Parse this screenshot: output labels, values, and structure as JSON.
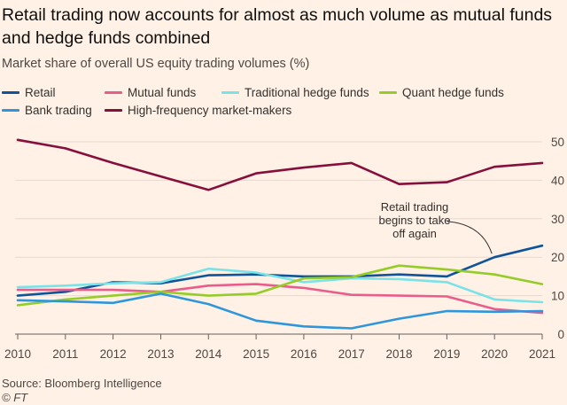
{
  "title": "Retail trading now accounts for almost as much volume as mutual funds and hedge funds combined",
  "subtitle": "Market share of overall US equity trading volumes (%)",
  "source": "Source: Bloomberg Intelligence",
  "credit": "© FT",
  "chart_data": {
    "type": "line",
    "x": [
      "2010",
      "2011",
      "2012",
      "2013",
      "2014",
      "2015",
      "2016",
      "2017",
      "2018",
      "2019",
      "2020",
      "2021"
    ],
    "ylim": [
      0,
      50
    ],
    "yticks": [
      "0",
      "10",
      "20",
      "30",
      "40",
      "50"
    ],
    "grid": true,
    "legend_position": "top-left",
    "annotation": {
      "lines": [
        "Retail trading",
        "begins to take",
        "off again"
      ],
      "points_to": {
        "x": "2020",
        "y": 20
      }
    },
    "series": [
      {
        "name": "Retail",
        "color": "#0f5499",
        "values": [
          10,
          11,
          13.5,
          13.2,
          15.3,
          15.5,
          15,
          15,
          15.5,
          15,
          20,
          23
        ]
      },
      {
        "name": "Mutual funds",
        "color": "#e95d8c",
        "values": [
          11.5,
          11.5,
          11.5,
          11,
          12.6,
          13,
          12,
          10.2,
          10,
          9.8,
          6.5,
          5.5
        ]
      },
      {
        "name": "Traditional hedge funds",
        "color": "#7ae3e8",
        "values": [
          12.2,
          12.6,
          13.2,
          13.5,
          17,
          16,
          13.5,
          14.5,
          14.3,
          13.5,
          9,
          8.3
        ]
      },
      {
        "name": "Quant hedge funds",
        "color": "#96cc28",
        "values": [
          7.5,
          9,
          10,
          11,
          10,
          10.5,
          14.5,
          14.8,
          17.8,
          16.8,
          15.5,
          13
        ]
      },
      {
        "name": "Bank trading",
        "color": "#2f96dc",
        "values": [
          8.8,
          8.5,
          8.1,
          10.5,
          7.8,
          3.5,
          2,
          1.5,
          4,
          6,
          5.8,
          6
        ]
      },
      {
        "name": "High-frequency market-makers",
        "color": "#860f3d",
        "values": [
          50.5,
          48.3,
          44.5,
          41,
          37.5,
          41.8,
          43.3,
          44.5,
          39,
          39.5,
          43.5,
          44.5
        ]
      }
    ]
  }
}
